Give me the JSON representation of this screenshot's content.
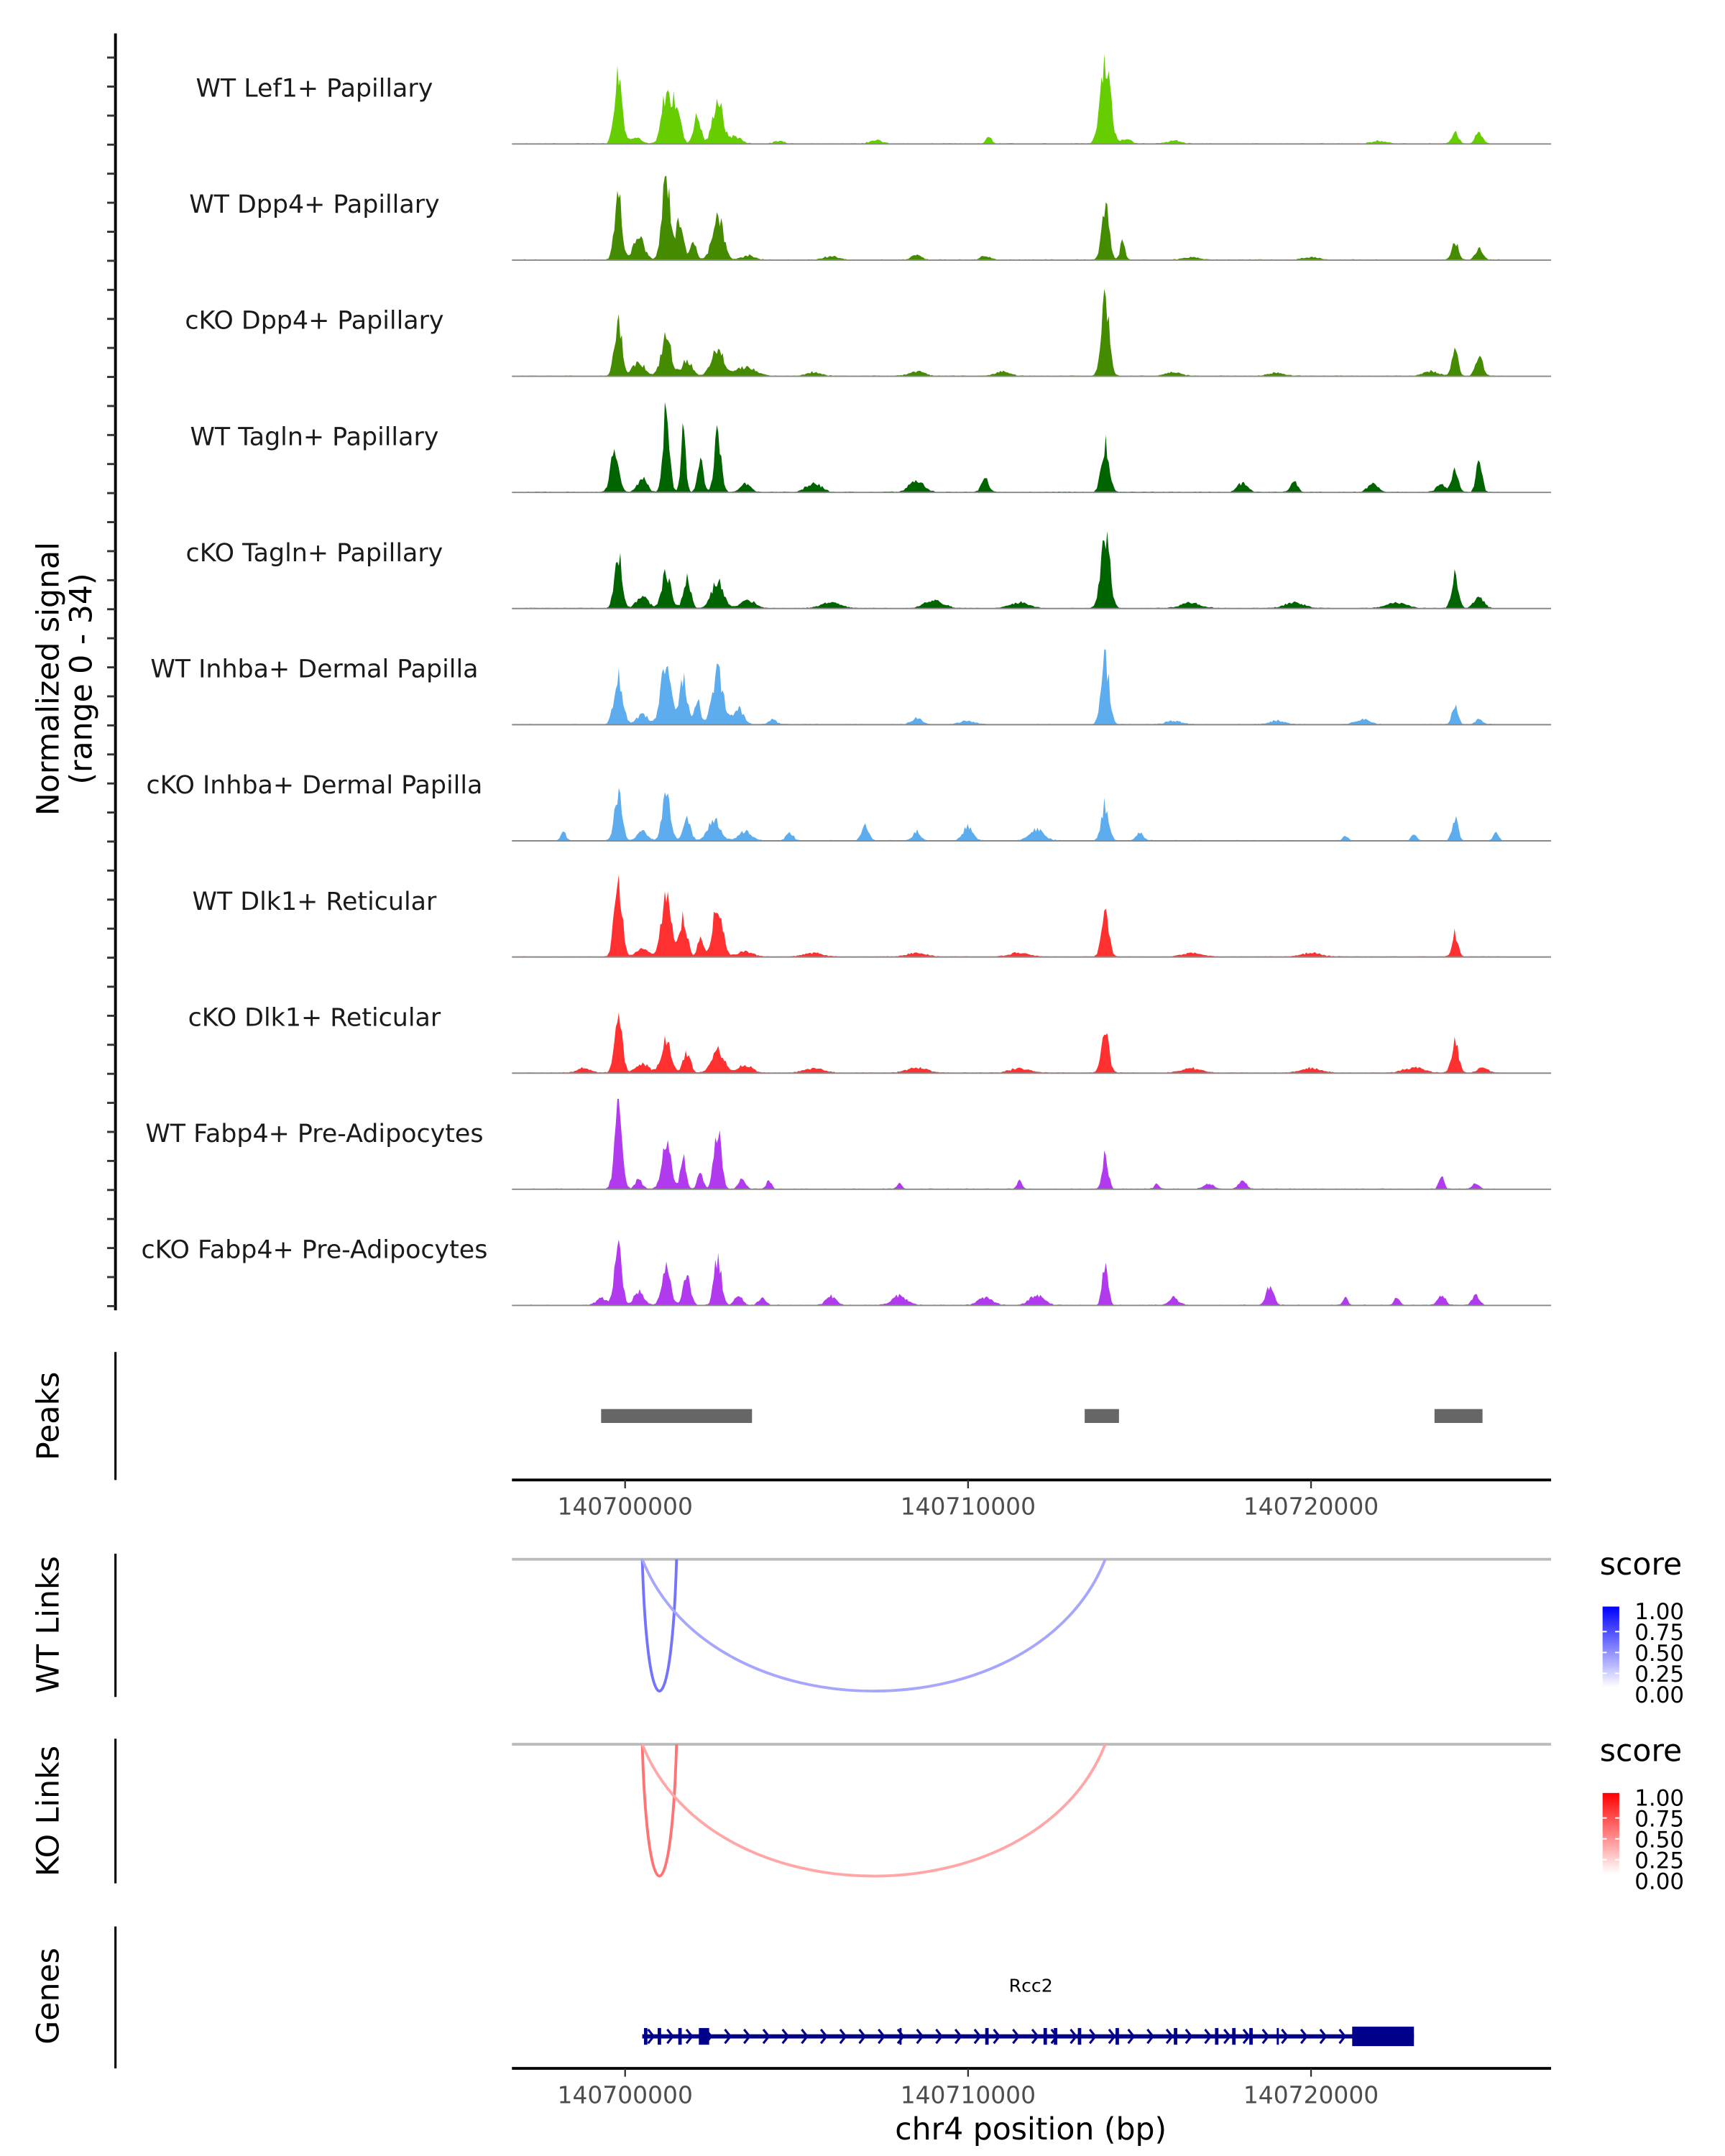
{
  "chart_data": {
    "type": "area",
    "title": "",
    "ylabel_line1": "Normalized signal",
    "ylabel_line2": "(range 0 - 34)",
    "xlabel": "chr4 position (bp)",
    "region": {
      "chrom": "chr4",
      "start": 140696700,
      "end": 140727000
    },
    "y_range": [
      0,
      34
    ],
    "x_ticks": [
      140700000,
      140710000,
      140720000
    ],
    "x_tick_labels": [
      "140700000",
      "140710000",
      "140720000"
    ],
    "tracks": [
      {
        "name": "WT Lef1+ Papillary",
        "color": "#66CD00",
        "peaks": [
          [
            140699800,
            0.78,
            160
          ],
          [
            140700300,
            0.08,
            200
          ],
          [
            140701200,
            0.55,
            180
          ],
          [
            140701500,
            0.45,
            160
          ],
          [
            140702100,
            0.3,
            150
          ],
          [
            140702700,
            0.48,
            200
          ],
          [
            140703200,
            0.08,
            250
          ],
          [
            140704500,
            0.03,
            200
          ],
          [
            140707300,
            0.04,
            250
          ],
          [
            140710600,
            0.08,
            120
          ],
          [
            140714000,
            0.95,
            200
          ],
          [
            140714600,
            0.05,
            200
          ],
          [
            140716000,
            0.03,
            300
          ],
          [
            140722000,
            0.03,
            300
          ],
          [
            140724200,
            0.14,
            130
          ],
          [
            140724900,
            0.12,
            150
          ]
        ]
      },
      {
        "name": "WT Dpp4+ Papillary",
        "color": "#458B00",
        "peaks": [
          [
            140699800,
            0.7,
            150
          ],
          [
            140700400,
            0.25,
            220
          ],
          [
            140701200,
            0.88,
            170
          ],
          [
            140701600,
            0.45,
            150
          ],
          [
            140702000,
            0.2,
            120
          ],
          [
            140702700,
            0.5,
            220
          ],
          [
            140703600,
            0.05,
            250
          ],
          [
            140706000,
            0.04,
            300
          ],
          [
            140708500,
            0.05,
            200
          ],
          [
            140710500,
            0.04,
            200
          ],
          [
            140714000,
            0.58,
            150
          ],
          [
            140714500,
            0.2,
            100
          ],
          [
            140716500,
            0.03,
            300
          ],
          [
            140720000,
            0.03,
            300
          ],
          [
            140724200,
            0.2,
            130
          ],
          [
            140724900,
            0.12,
            150
          ]
        ]
      },
      {
        "name": "cKO Dpp4+ Papillary",
        "color": "#458B00",
        "peaks": [
          [
            140699800,
            0.62,
            150
          ],
          [
            140700400,
            0.15,
            250
          ],
          [
            140701200,
            0.42,
            200
          ],
          [
            140701800,
            0.18,
            200
          ],
          [
            140702700,
            0.28,
            250
          ],
          [
            140703500,
            0.1,
            400
          ],
          [
            140705500,
            0.04,
            300
          ],
          [
            140708500,
            0.05,
            300
          ],
          [
            140711000,
            0.05,
            300
          ],
          [
            140714000,
            0.82,
            160
          ],
          [
            140716000,
            0.04,
            300
          ],
          [
            140719000,
            0.04,
            300
          ],
          [
            140723500,
            0.05,
            300
          ],
          [
            140724200,
            0.28,
            130
          ],
          [
            140724900,
            0.22,
            150
          ]
        ]
      },
      {
        "name": "WT Tagln+ Papillary",
        "color": "#006400",
        "peaks": [
          [
            140699700,
            0.5,
            160
          ],
          [
            140700500,
            0.15,
            200
          ],
          [
            140701200,
            0.95,
            130
          ],
          [
            140701700,
            0.68,
            100
          ],
          [
            140702200,
            0.35,
            120
          ],
          [
            140702700,
            0.62,
            140
          ],
          [
            140703500,
            0.1,
            200
          ],
          [
            140705500,
            0.1,
            300
          ],
          [
            140708500,
            0.12,
            300
          ],
          [
            140710500,
            0.15,
            150
          ],
          [
            140714000,
            0.52,
            160
          ],
          [
            140718000,
            0.1,
            200
          ],
          [
            140719500,
            0.12,
            150
          ],
          [
            140721800,
            0.1,
            200
          ],
          [
            140723800,
            0.08,
            200
          ],
          [
            140724200,
            0.25,
            130
          ],
          [
            140724900,
            0.35,
            120
          ]
        ]
      },
      {
        "name": "cKO Tagln+ Papillary",
        "color": "#006400",
        "peaks": [
          [
            140699800,
            0.6,
            150
          ],
          [
            140700500,
            0.12,
            250
          ],
          [
            140701200,
            0.38,
            180
          ],
          [
            140701800,
            0.32,
            150
          ],
          [
            140702700,
            0.28,
            250
          ],
          [
            140703600,
            0.08,
            300
          ],
          [
            140706000,
            0.06,
            400
          ],
          [
            140709000,
            0.08,
            400
          ],
          [
            140711500,
            0.06,
            400
          ],
          [
            140714000,
            0.85,
            180
          ],
          [
            140716500,
            0.06,
            400
          ],
          [
            140719500,
            0.06,
            400
          ],
          [
            140722500,
            0.06,
            400
          ],
          [
            140724200,
            0.35,
            140
          ],
          [
            140724900,
            0.12,
            200
          ]
        ]
      },
      {
        "name": "WT Inhba+ Dermal Papilla",
        "color": "#5CACEE",
        "peaks": [
          [
            140699800,
            0.5,
            180
          ],
          [
            140700500,
            0.1,
            250
          ],
          [
            140701200,
            0.75,
            200
          ],
          [
            140701700,
            0.5,
            150
          ],
          [
            140702100,
            0.28,
            120
          ],
          [
            140702700,
            0.55,
            220
          ],
          [
            140703300,
            0.18,
            200
          ],
          [
            140704300,
            0.06,
            150
          ],
          [
            140708500,
            0.07,
            200
          ],
          [
            140710000,
            0.04,
            300
          ],
          [
            140714000,
            0.72,
            160
          ],
          [
            140716000,
            0.04,
            300
          ],
          [
            140719000,
            0.04,
            300
          ],
          [
            140721500,
            0.05,
            300
          ],
          [
            140724200,
            0.2,
            120
          ],
          [
            140724900,
            0.06,
            150
          ]
        ]
      },
      {
        "name": "cKO Inhba+ Dermal Papilla",
        "color": "#5CACEE",
        "peaks": [
          [
            140698200,
            0.1,
            100
          ],
          [
            140699800,
            0.52,
            150
          ],
          [
            140700500,
            0.1,
            200
          ],
          [
            140701200,
            0.48,
            170
          ],
          [
            140701800,
            0.25,
            150
          ],
          [
            140702600,
            0.22,
            250
          ],
          [
            140703500,
            0.1,
            250
          ],
          [
            140704800,
            0.08,
            150
          ],
          [
            140707000,
            0.15,
            150
          ],
          [
            140708500,
            0.1,
            150
          ],
          [
            140710000,
            0.15,
            200
          ],
          [
            140712000,
            0.12,
            300
          ],
          [
            140714000,
            0.4,
            150
          ],
          [
            140715000,
            0.08,
            150
          ],
          [
            140721000,
            0.06,
            100
          ],
          [
            140723000,
            0.08,
            100
          ],
          [
            140724200,
            0.25,
            120
          ],
          [
            140725400,
            0.1,
            100
          ]
        ]
      },
      {
        "name": "WT Dlk1+ Reticular",
        "color": "#FF3030",
        "peaks": [
          [
            140699800,
            0.82,
            160
          ],
          [
            140700500,
            0.08,
            250
          ],
          [
            140701200,
            0.68,
            200
          ],
          [
            140701700,
            0.45,
            150
          ],
          [
            140702200,
            0.22,
            120
          ],
          [
            140702700,
            0.55,
            200
          ],
          [
            140703500,
            0.06,
            300
          ],
          [
            140705500,
            0.04,
            400
          ],
          [
            140708500,
            0.04,
            400
          ],
          [
            140711500,
            0.04,
            400
          ],
          [
            140714000,
            0.45,
            150
          ],
          [
            140716500,
            0.04,
            400
          ],
          [
            140720000,
            0.04,
            400
          ],
          [
            140724200,
            0.25,
            120
          ]
        ]
      },
      {
        "name": "cKO Dlk1+ Reticular",
        "color": "#FF3030",
        "peaks": [
          [
            140698800,
            0.06,
            250
          ],
          [
            140699800,
            0.58,
            160
          ],
          [
            140700500,
            0.1,
            250
          ],
          [
            140701200,
            0.38,
            200
          ],
          [
            140701800,
            0.22,
            150
          ],
          [
            140702700,
            0.25,
            250
          ],
          [
            140703500,
            0.08,
            300
          ],
          [
            140705500,
            0.05,
            400
          ],
          [
            140708500,
            0.06,
            400
          ],
          [
            140711500,
            0.05,
            400
          ],
          [
            140714000,
            0.4,
            160
          ],
          [
            140716500,
            0.05,
            400
          ],
          [
            140720000,
            0.05,
            400
          ],
          [
            140723000,
            0.06,
            400
          ],
          [
            140724200,
            0.35,
            140
          ],
          [
            140725000,
            0.06,
            200
          ]
        ]
      },
      {
        "name": "WT Fabp4+ Pre-Adipocytes",
        "color": "#B23AEE",
        "peaks": [
          [
            140699800,
            0.95,
            150
          ],
          [
            140700400,
            0.1,
            150
          ],
          [
            140701200,
            0.52,
            180
          ],
          [
            140701700,
            0.32,
            120
          ],
          [
            140702200,
            0.18,
            120
          ],
          [
            140702700,
            0.68,
            150
          ],
          [
            140703400,
            0.1,
            150
          ],
          [
            140704200,
            0.1,
            100
          ],
          [
            140708000,
            0.06,
            100
          ],
          [
            140711500,
            0.1,
            100
          ],
          [
            140714000,
            0.38,
            120
          ],
          [
            140715500,
            0.06,
            100
          ],
          [
            140717000,
            0.06,
            200
          ],
          [
            140718000,
            0.1,
            150
          ],
          [
            140723800,
            0.15,
            100
          ],
          [
            140724800,
            0.06,
            150
          ]
        ]
      },
      {
        "name": "cKO Fabp4+ Pre-Adipocytes",
        "color": "#B23AEE",
        "peaks": [
          [
            140699300,
            0.08,
            200
          ],
          [
            140699800,
            0.62,
            150
          ],
          [
            140700400,
            0.15,
            200
          ],
          [
            140701200,
            0.4,
            180
          ],
          [
            140701800,
            0.32,
            150
          ],
          [
            140702700,
            0.52,
            150
          ],
          [
            140703300,
            0.12,
            150
          ],
          [
            140704000,
            0.08,
            150
          ],
          [
            140706000,
            0.1,
            200
          ],
          [
            140708000,
            0.1,
            300
          ],
          [
            140710500,
            0.08,
            300
          ],
          [
            140712000,
            0.1,
            300
          ],
          [
            140714000,
            0.45,
            120
          ],
          [
            140716000,
            0.08,
            200
          ],
          [
            140718800,
            0.2,
            150
          ],
          [
            140721000,
            0.08,
            100
          ],
          [
            140722500,
            0.1,
            100
          ],
          [
            140723800,
            0.12,
            150
          ],
          [
            140724800,
            0.1,
            150
          ]
        ]
      }
    ],
    "peaks_track": {
      "label": "Peaks",
      "color": "#666666",
      "regions": [
        [
          140699300,
          140703700
        ],
        [
          140713400,
          140714400
        ],
        [
          140723600,
          140725000
        ]
      ]
    },
    "links": [
      {
        "label": "WT Links",
        "low_color": "#FFFFFF",
        "high_color": "#0000FF",
        "arcs": [
          [
            140700500,
            140701500,
            0.55
          ],
          [
            140700500,
            140714000,
            0.35
          ]
        ]
      },
      {
        "label": "KO Links",
        "low_color": "#FFFFFF",
        "high_color": "#FF0000",
        "arcs": [
          [
            140700500,
            140701500,
            0.55
          ],
          [
            140700500,
            140714000,
            0.35
          ]
        ]
      }
    ],
    "legend": {
      "title": "score",
      "ticks": [
        "1.00",
        "0.75",
        "0.50",
        "0.25",
        "0.00"
      ]
    },
    "genes_track": {
      "label": "Genes",
      "color": "#00008B",
      "gene": {
        "name": "Rcc2",
        "strand": "+",
        "start": 140700500,
        "end": 140723000,
        "exons": [
          [
            140700550,
            140700650
          ],
          [
            140700950,
            140701050
          ],
          [
            140701550,
            140701650
          ],
          [
            140702150,
            140702450
          ],
          [
            140708000,
            140708050
          ],
          [
            140710500,
            140710600
          ],
          [
            140712200,
            140712300
          ],
          [
            140712500,
            140712600
          ],
          [
            140713200,
            140713300
          ],
          [
            140714300,
            140714400
          ],
          [
            140716000,
            140716100
          ],
          [
            140717200,
            140717300
          ],
          [
            140717700,
            140717800
          ],
          [
            140718200,
            140718300
          ],
          [
            140719000,
            140719050
          ],
          [
            140721200,
            140723000
          ]
        ]
      }
    }
  }
}
